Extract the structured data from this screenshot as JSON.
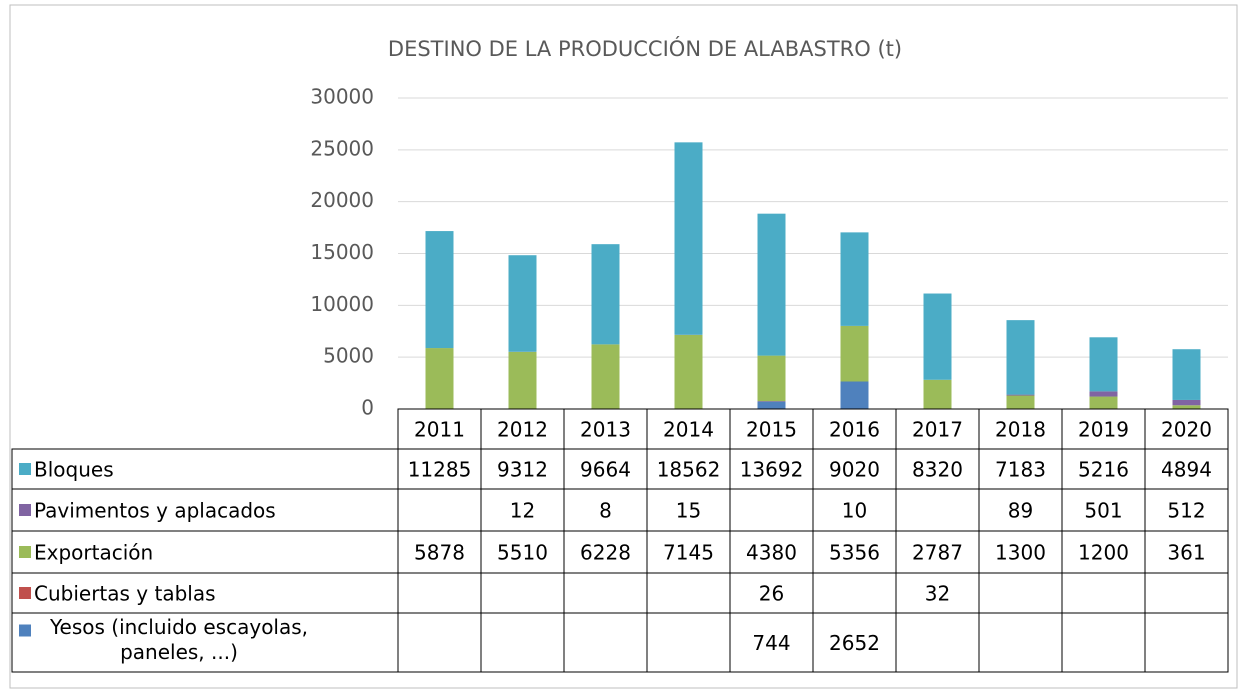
{
  "chart_data": {
    "type": "bar",
    "stacked": true,
    "title": "DESTINO DE LA PRODUCCIÓN DE ALABASTRO (t)",
    "categories": [
      "2011",
      "2012",
      "2013",
      "2014",
      "2015",
      "2016",
      "2017",
      "2018",
      "2019",
      "2020"
    ],
    "series": [
      {
        "name": "Bloques",
        "color": "#4bacc6",
        "values": [
          11285,
          9312,
          9664,
          18562,
          13692,
          9020,
          8320,
          7183,
          5216,
          4894
        ]
      },
      {
        "name": "Pavimentos y aplacados",
        "color": "#8064a2",
        "values": [
          null,
          12,
          8,
          15,
          null,
          10,
          null,
          89,
          501,
          512
        ]
      },
      {
        "name": "Exportación",
        "color": "#9bbb59",
        "values": [
          5878,
          5510,
          6228,
          7145,
          4380,
          5356,
          2787,
          1300,
          1200,
          361
        ]
      },
      {
        "name": "Cubiertas y tablas",
        "color": "#c0504d",
        "values": [
          null,
          null,
          null,
          null,
          26,
          null,
          32,
          null,
          null,
          null
        ]
      },
      {
        "name": "Yesos (incluido escayolas, paneles, ...)",
        "color": "#4f81bd",
        "values": [
          null,
          null,
          null,
          null,
          744,
          2652,
          null,
          null,
          null,
          null
        ]
      }
    ],
    "ylim": [
      0,
      30000
    ],
    "yticks": [
      0,
      5000,
      10000,
      15000,
      20000,
      25000,
      30000
    ],
    "grid": true,
    "data_table": true
  }
}
